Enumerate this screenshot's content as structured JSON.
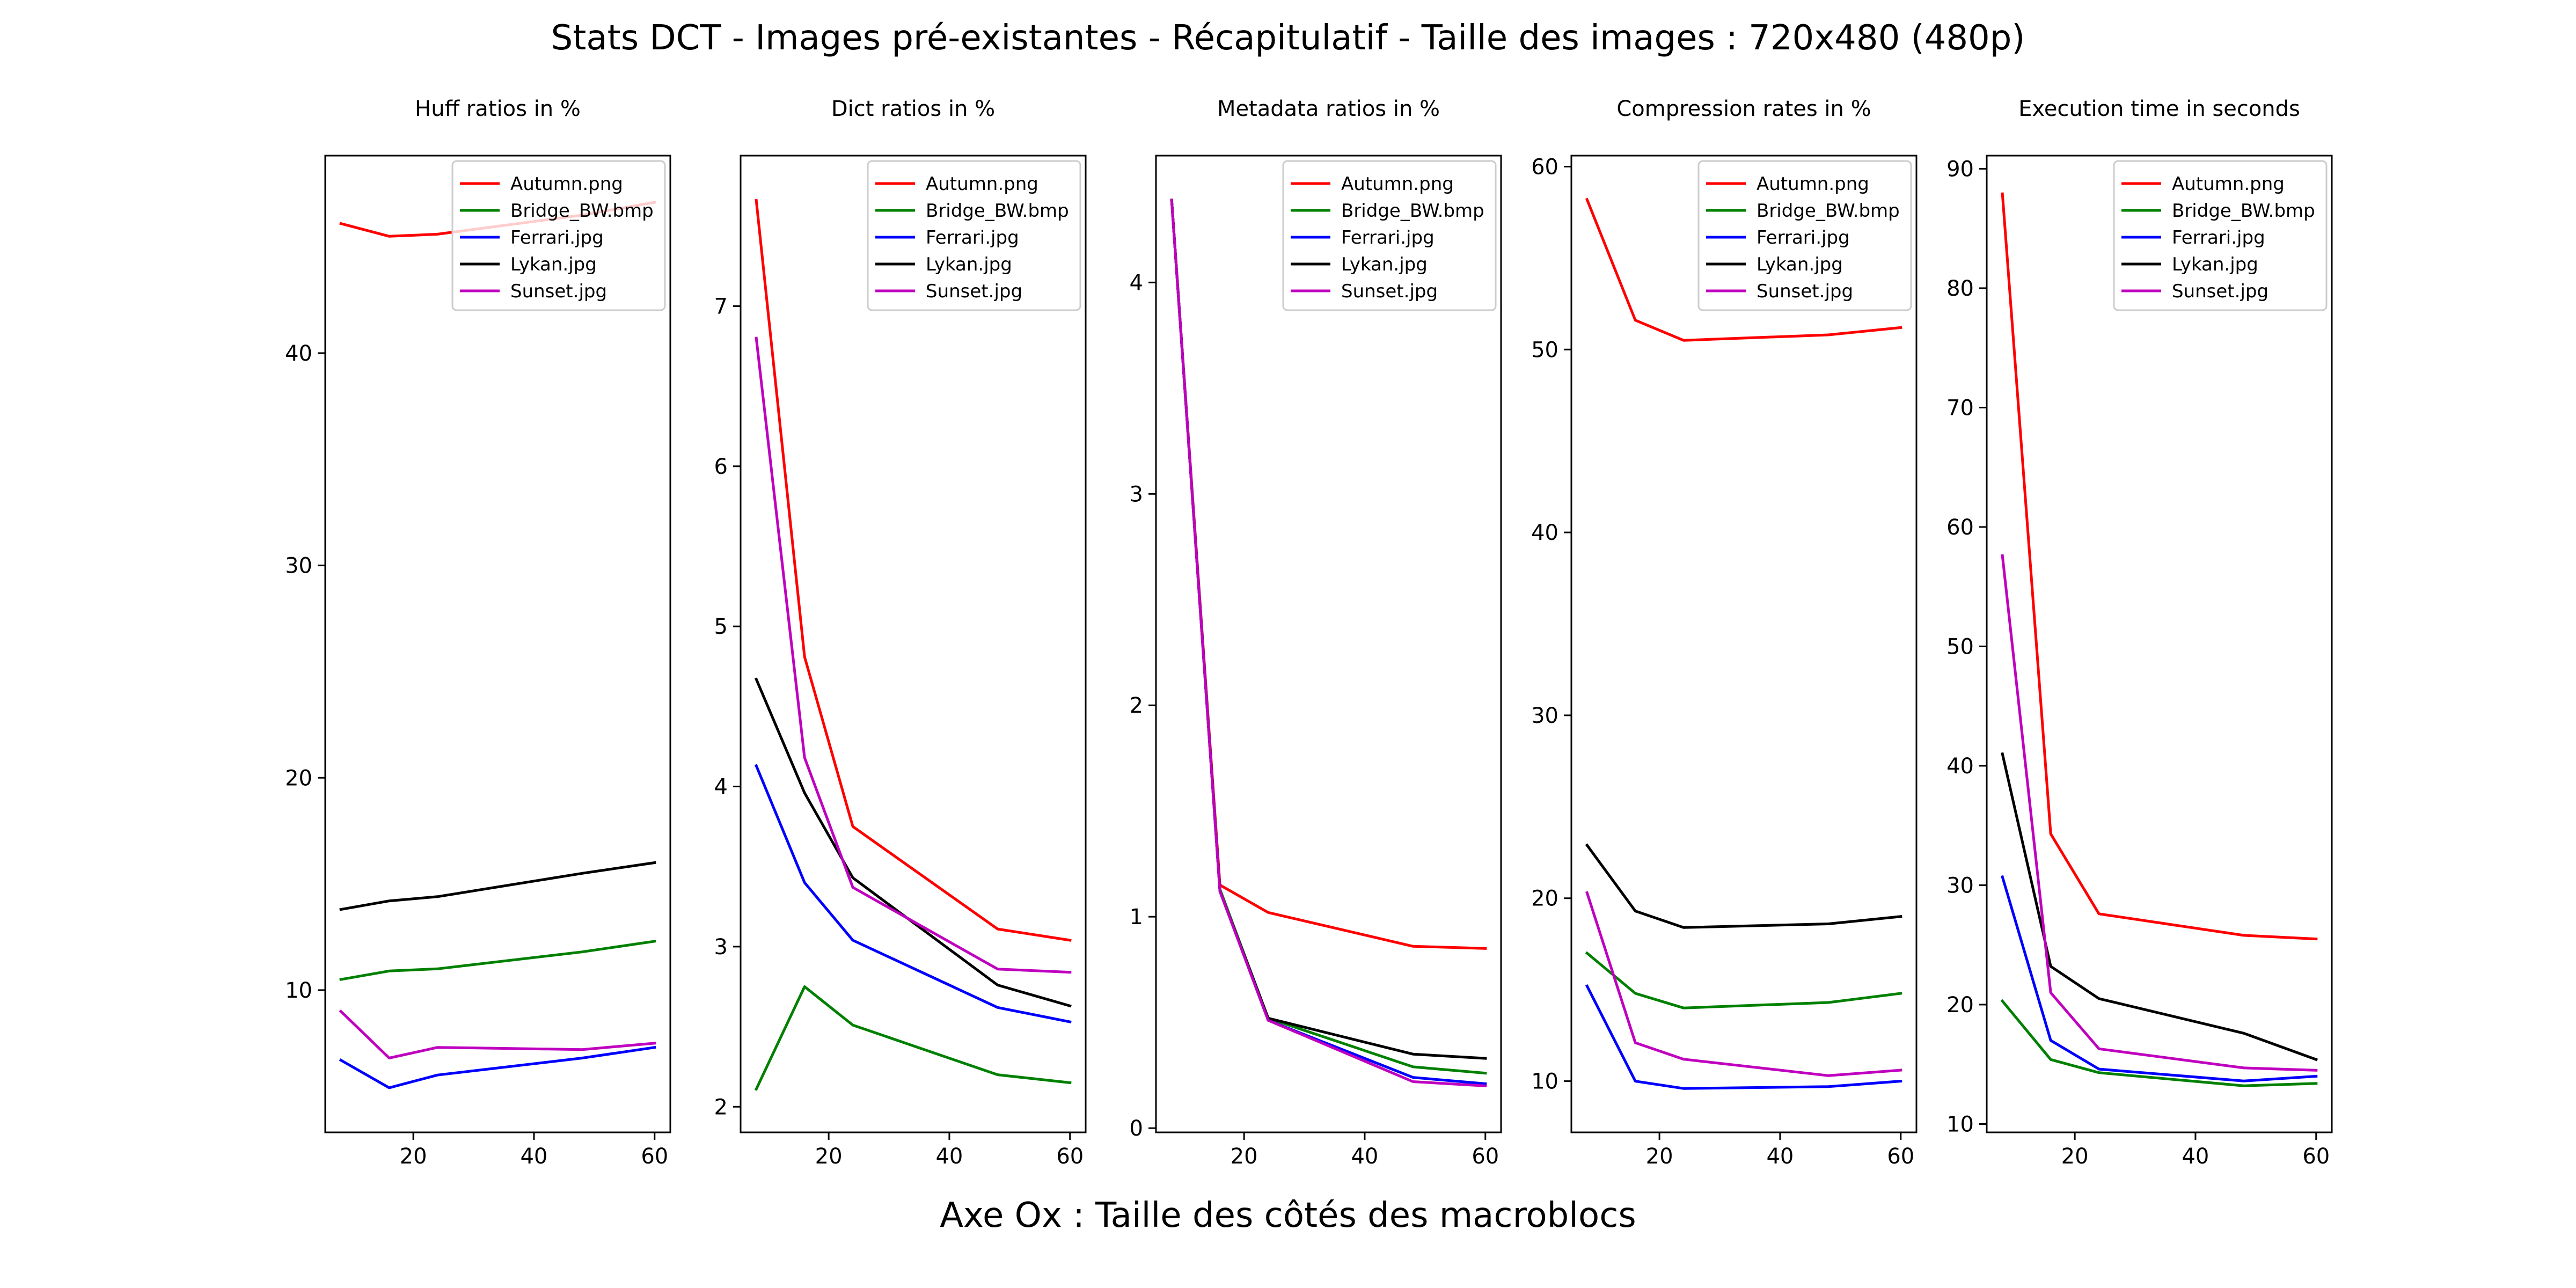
{
  "figure": {
    "suptitle": "Stats DCT - Images pré-existantes - Récapitulatif - Taille des images : 720x480 (480p)",
    "xlabel": "Axe Ox : Taille des côtés des macroblocs"
  },
  "colors": {
    "Autumn.png": "#ff0000",
    "Bridge_BW.bmp": "#008000",
    "Ferrari.jpg": "#0000ff",
    "Lykan.jpg": "#000000",
    "Sunset.jpg": "#bf00bf"
  },
  "chart_data": [
    {
      "type": "line",
      "title": "Huff ratios in %",
      "legend": "top-right",
      "grid": false,
      "xlim": [
        5.4,
        62.6
      ],
      "ylim": [
        3.3,
        49.3
      ],
      "xticks": [
        20,
        40,
        60
      ],
      "yticks": [
        10,
        20,
        30,
        40
      ],
      "x": [
        8,
        16,
        24,
        48,
        60
      ],
      "series": [
        {
          "name": "Autumn.png",
          "values": [
            46.1,
            45.5,
            45.6,
            46.5,
            47.1
          ]
        },
        {
          "name": "Bridge_BW.bmp",
          "values": [
            10.5,
            10.9,
            11.0,
            11.8,
            12.3
          ]
        },
        {
          "name": "Ferrari.jpg",
          "values": [
            6.7,
            5.4,
            6.0,
            6.8,
            7.3
          ]
        },
        {
          "name": "Lykan.jpg",
          "values": [
            13.8,
            14.2,
            14.4,
            15.5,
            16.0
          ]
        },
        {
          "name": "Sunset.jpg",
          "values": [
            9.0,
            6.8,
            7.3,
            7.2,
            7.5
          ]
        }
      ]
    },
    {
      "type": "line",
      "title": "Dict ratios in %",
      "legend": "top-right",
      "grid": false,
      "xlim": [
        5.4,
        62.6
      ],
      "ylim": [
        1.84,
        7.94
      ],
      "xticks": [
        20,
        40,
        60
      ],
      "yticks": [
        2,
        3,
        4,
        5,
        6,
        7
      ],
      "x": [
        8,
        16,
        24,
        48,
        60
      ],
      "series": [
        {
          "name": "Autumn.png",
          "values": [
            7.66,
            4.81,
            3.75,
            3.11,
            3.04
          ]
        },
        {
          "name": "Bridge_BW.bmp",
          "values": [
            2.11,
            2.75,
            2.51,
            2.2,
            2.15
          ]
        },
        {
          "name": "Ferrari.jpg",
          "values": [
            4.13,
            3.4,
            3.04,
            2.62,
            2.53
          ]
        },
        {
          "name": "Lykan.jpg",
          "values": [
            4.67,
            3.96,
            3.43,
            2.76,
            2.63
          ]
        },
        {
          "name": "Sunset.jpg",
          "values": [
            6.8,
            4.18,
            3.37,
            2.86,
            2.84
          ]
        }
      ]
    },
    {
      "type": "line",
      "title": "Metadata ratios in %",
      "legend": "top-right",
      "grid": false,
      "xlim": [
        5.4,
        62.6
      ],
      "ylim": [
        -0.02,
        4.6
      ],
      "xticks": [
        20,
        40,
        60
      ],
      "yticks": [
        0,
        1,
        2,
        3,
        4
      ],
      "x": [
        8,
        16,
        24,
        48,
        60
      ],
      "series": [
        {
          "name": "Autumn.png",
          "values": [
            4.39,
            1.15,
            1.02,
            0.86,
            0.85
          ]
        },
        {
          "name": "Bridge_BW.bmp",
          "values": [
            4.39,
            1.13,
            0.52,
            0.29,
            0.26
          ]
        },
        {
          "name": "Ferrari.jpg",
          "values": [
            4.39,
            1.12,
            0.51,
            0.24,
            0.21
          ]
        },
        {
          "name": "Lykan.jpg",
          "values": [
            4.39,
            1.12,
            0.52,
            0.35,
            0.33
          ]
        },
        {
          "name": "Sunset.jpg",
          "values": [
            4.39,
            1.12,
            0.51,
            0.22,
            0.2
          ]
        }
      ]
    },
    {
      "type": "line",
      "title": "Compression rates in %",
      "legend": "top-right",
      "grid": false,
      "xlim": [
        5.4,
        62.6
      ],
      "ylim": [
        7.2,
        60.6
      ],
      "xticks": [
        20,
        40,
        60
      ],
      "yticks": [
        10,
        20,
        30,
        40,
        50,
        60
      ],
      "x": [
        8,
        16,
        24,
        48,
        60
      ],
      "series": [
        {
          "name": "Autumn.png",
          "values": [
            58.2,
            51.6,
            50.5,
            50.8,
            51.2
          ]
        },
        {
          "name": "Bridge_BW.bmp",
          "values": [
            17.0,
            14.8,
            14.0,
            14.3,
            14.8
          ]
        },
        {
          "name": "Ferrari.jpg",
          "values": [
            15.2,
            10.0,
            9.6,
            9.7,
            10.0
          ]
        },
        {
          "name": "Lykan.jpg",
          "values": [
            22.9,
            19.3,
            18.4,
            18.6,
            19.0
          ]
        },
        {
          "name": "Sunset.jpg",
          "values": [
            20.3,
            12.1,
            11.2,
            10.3,
            10.6
          ]
        }
      ]
    },
    {
      "type": "line",
      "title": "Execution time in seconds",
      "legend": "top-right",
      "grid": false,
      "xlim": [
        5.4,
        62.6
      ],
      "ylim": [
        9.3,
        91.1
      ],
      "xticks": [
        20,
        40,
        60
      ],
      "yticks": [
        10,
        20,
        30,
        40,
        50,
        60,
        70,
        80,
        90
      ],
      "x": [
        8,
        16,
        24,
        48,
        60
      ],
      "series": [
        {
          "name": "Autumn.png",
          "values": [
            87.9,
            34.3,
            27.6,
            25.8,
            25.5
          ]
        },
        {
          "name": "Bridge_BW.bmp",
          "values": [
            20.3,
            15.4,
            14.3,
            13.2,
            13.4
          ]
        },
        {
          "name": "Ferrari.jpg",
          "values": [
            30.7,
            17.0,
            14.6,
            13.6,
            14.0
          ]
        },
        {
          "name": "Lykan.jpg",
          "values": [
            41.0,
            23.2,
            20.5,
            17.6,
            15.4
          ]
        },
        {
          "name": "Sunset.jpg",
          "values": [
            57.6,
            21.0,
            16.3,
            14.7,
            14.5
          ]
        }
      ]
    }
  ]
}
